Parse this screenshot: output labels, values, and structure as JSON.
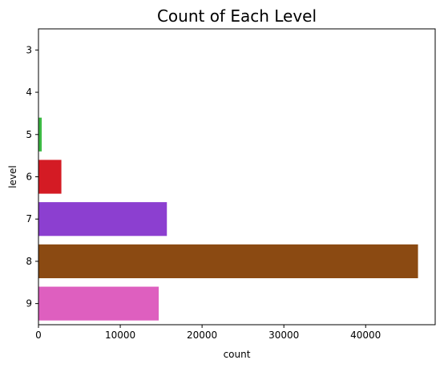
{
  "chart_data": {
    "type": "bar",
    "orientation": "horizontal",
    "title": "Count of Each Level",
    "xlabel": "count",
    "ylabel": "level",
    "categories": [
      "3",
      "4",
      "5",
      "6",
      "7",
      "8",
      "9"
    ],
    "values": [
      0,
      40,
      400,
      2800,
      15700,
      46400,
      14700
    ],
    "colors": [
      "#1f77b4",
      "#ff7f0e",
      "#3cb944",
      "#d41b24",
      "#8c3fd0",
      "#8b4a12",
      "#de5fbf"
    ],
    "xlim": [
      0,
      48500
    ],
    "xticks": [
      0,
      10000,
      20000,
      30000,
      40000
    ],
    "grid": false,
    "legend": false
  }
}
